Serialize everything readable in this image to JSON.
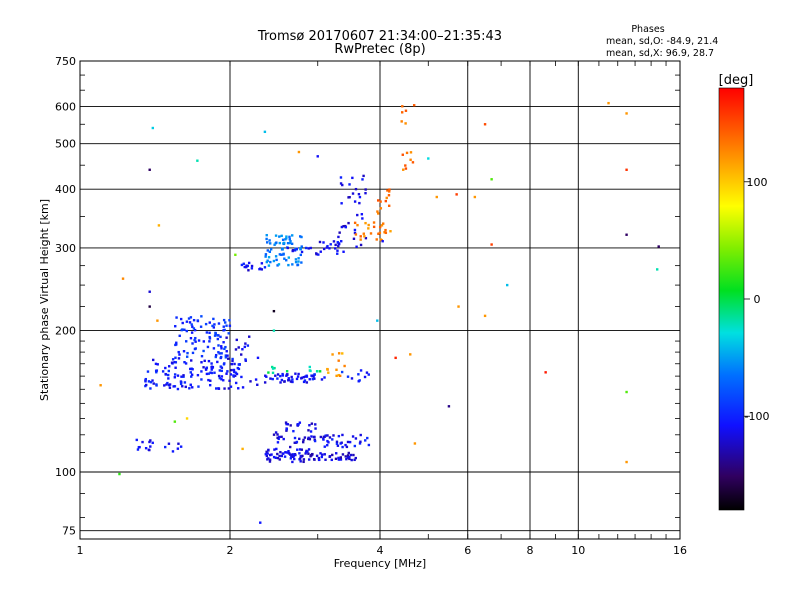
{
  "chart_data": {
    "type": "scatter",
    "title": "Tromsø 20170607 21:34:00–21:35:43",
    "subtitle": "RwPretec (8p)",
    "xlabel": "Frequency [MHz]",
    "ylabel": "Stationary phase Virtual Height [km]",
    "x_scale": "log",
    "y_scale": "log",
    "xlim": [
      1,
      16
    ],
    "ylim": [
      72,
      750
    ],
    "x_ticks": [
      1,
      2,
      4,
      6,
      8,
      10,
      16
    ],
    "x_tick_labels": [
      "1",
      "2",
      "4",
      "6",
      "8",
      "10",
      "16"
    ],
    "y_ticks": [
      75,
      100,
      200,
      300,
      400,
      500,
      600,
      750
    ],
    "y_tick_labels": [
      "75",
      "100",
      "200",
      "300",
      "400",
      "500",
      "600",
      "750"
    ],
    "grid": true,
    "stats": {
      "heading": "Phases",
      "line_o": "mean, sd,O: -84.9, 21.4",
      "line_x": "mean, sd,X:  96.9, 28.7"
    },
    "colorbar": {
      "label": "[deg]",
      "range": [
        -180,
        180
      ],
      "ticks": [
        100,
        0,
        -100
      ],
      "tick_labels": [
        "100",
        "0",
        "-100"
      ]
    },
    "clusters": [
      {
        "x0": 1.28,
        "x1": 1.4,
        "y0": 110,
        "y1": 118,
        "n": 12,
        "phase": -110
      },
      {
        "x0": 1.45,
        "x1": 1.6,
        "y0": 110,
        "y1": 117,
        "n": 6,
        "phase": -110
      },
      {
        "x0": 1.35,
        "x1": 2.1,
        "y0": 150,
        "y1": 175,
        "n": 130,
        "phase": -105
      },
      {
        "x0": 1.55,
        "x1": 2.0,
        "y0": 175,
        "y1": 215,
        "n": 90,
        "phase": -95
      },
      {
        "x0": 1.95,
        "x1": 2.3,
        "y0": 150,
        "y1": 200,
        "n": 25,
        "phase": -110
      },
      {
        "x0": 2.1,
        "x1": 2.4,
        "y0": 268,
        "y1": 280,
        "n": 15,
        "phase": -110
      },
      {
        "x0": 2.35,
        "x1": 2.9,
        "y0": 105,
        "y1": 112,
        "n": 60,
        "phase": -115
      },
      {
        "x0": 2.45,
        "x1": 3.0,
        "y0": 112,
        "y1": 128,
        "n": 45,
        "phase": -115
      },
      {
        "x0": 2.9,
        "x1": 3.6,
        "y0": 106,
        "y1": 110,
        "n": 40,
        "phase": -120
      },
      {
        "x0": 3.0,
        "x1": 3.8,
        "y0": 113,
        "y1": 120,
        "n": 35,
        "phase": -110
      },
      {
        "x0": 2.35,
        "x1": 3.1,
        "y0": 155,
        "y1": 162,
        "n": 50,
        "phase": -110
      },
      {
        "x0": 2.35,
        "x1": 3.1,
        "y0": 162,
        "y1": 168,
        "n": 12,
        "phase": -10
      },
      {
        "x0": 3.1,
        "x1": 3.4,
        "y0": 160,
        "y1": 180,
        "n": 12,
        "phase": 120
      },
      {
        "x0": 3.3,
        "x1": 3.8,
        "y0": 155,
        "y1": 165,
        "n": 10,
        "phase": -100
      },
      {
        "x0": 2.35,
        "x1": 2.8,
        "y0": 275,
        "y1": 320,
        "n": 70,
        "phase": -60
      },
      {
        "x0": 2.6,
        "x1": 3.4,
        "y0": 290,
        "y1": 310,
        "n": 30,
        "phase": -110
      },
      {
        "x0": 3.3,
        "x1": 3.8,
        "y0": 300,
        "y1": 450,
        "n": 35,
        "phase": -115
      },
      {
        "x0": 3.55,
        "x1": 4.2,
        "y0": 310,
        "y1": 340,
        "n": 25,
        "phase": 130
      },
      {
        "x0": 3.95,
        "x1": 4.25,
        "y0": 355,
        "y1": 400,
        "n": 12,
        "phase": 135
      },
      {
        "x0": 4.4,
        "x1": 4.7,
        "y0": 440,
        "y1": 480,
        "n": 8,
        "phase": 135
      },
      {
        "x0": 4.4,
        "x1": 4.7,
        "y0": 545,
        "y1": 610,
        "n": 6,
        "phase": 130
      }
    ],
    "points": [
      {
        "x": 1.1,
        "y": 153,
        "phase": 120
      },
      {
        "x": 1.2,
        "y": 99,
        "phase": 20
      },
      {
        "x": 1.22,
        "y": 258,
        "phase": 125
      },
      {
        "x": 1.38,
        "y": 440,
        "phase": -150
      },
      {
        "x": 1.4,
        "y": 540,
        "phase": -35
      },
      {
        "x": 1.44,
        "y": 335,
        "phase": 110
      },
      {
        "x": 1.38,
        "y": 242,
        "phase": -120
      },
      {
        "x": 1.38,
        "y": 225,
        "phase": -160
      },
      {
        "x": 1.43,
        "y": 210,
        "phase": 120
      },
      {
        "x": 1.55,
        "y": 128,
        "phase": 30
      },
      {
        "x": 1.64,
        "y": 130,
        "phase": 95
      },
      {
        "x": 1.72,
        "y": 460,
        "phase": -20
      },
      {
        "x": 2.05,
        "y": 290,
        "phase": 40
      },
      {
        "x": 2.12,
        "y": 112,
        "phase": 110
      },
      {
        "x": 2.3,
        "y": 78,
        "phase": -105
      },
      {
        "x": 2.35,
        "y": 530,
        "phase": -40
      },
      {
        "x": 2.45,
        "y": 220,
        "phase": -170
      },
      {
        "x": 2.45,
        "y": 200,
        "phase": -20
      },
      {
        "x": 2.75,
        "y": 480,
        "phase": 120
      },
      {
        "x": 3.0,
        "y": 470,
        "phase": -110
      },
      {
        "x": 3.95,
        "y": 210,
        "phase": -40
      },
      {
        "x": 4.05,
        "y": 310,
        "phase": -110
      },
      {
        "x": 4.3,
        "y": 175,
        "phase": 165
      },
      {
        "x": 4.6,
        "y": 178,
        "phase": 120
      },
      {
        "x": 4.7,
        "y": 115,
        "phase": 120
      },
      {
        "x": 5.0,
        "y": 465,
        "phase": -30
      },
      {
        "x": 5.2,
        "y": 385,
        "phase": 120
      },
      {
        "x": 5.5,
        "y": 138,
        "phase": -140
      },
      {
        "x": 5.7,
        "y": 390,
        "phase": 155
      },
      {
        "x": 5.75,
        "y": 225,
        "phase": 120
      },
      {
        "x": 6.2,
        "y": 385,
        "phase": 120
      },
      {
        "x": 6.5,
        "y": 215,
        "phase": 120
      },
      {
        "x": 6.5,
        "y": 550,
        "phase": 150
      },
      {
        "x": 6.7,
        "y": 420,
        "phase": 30
      },
      {
        "x": 6.7,
        "y": 305,
        "phase": 155
      },
      {
        "x": 7.2,
        "y": 250,
        "phase": -40
      },
      {
        "x": 8.6,
        "y": 163,
        "phase": 170
      },
      {
        "x": 11.5,
        "y": 610,
        "phase": 120
      },
      {
        "x": 12.5,
        "y": 580,
        "phase": 120
      },
      {
        "x": 12.5,
        "y": 440,
        "phase": 160
      },
      {
        "x": 12.5,
        "y": 320,
        "phase": -150
      },
      {
        "x": 12.5,
        "y": 148,
        "phase": 30
      },
      {
        "x": 12.5,
        "y": 105,
        "phase": 120
      },
      {
        "x": 14.5,
        "y": 302,
        "phase": -150
      },
      {
        "x": 14.4,
        "y": 270,
        "phase": -20
      }
    ]
  }
}
